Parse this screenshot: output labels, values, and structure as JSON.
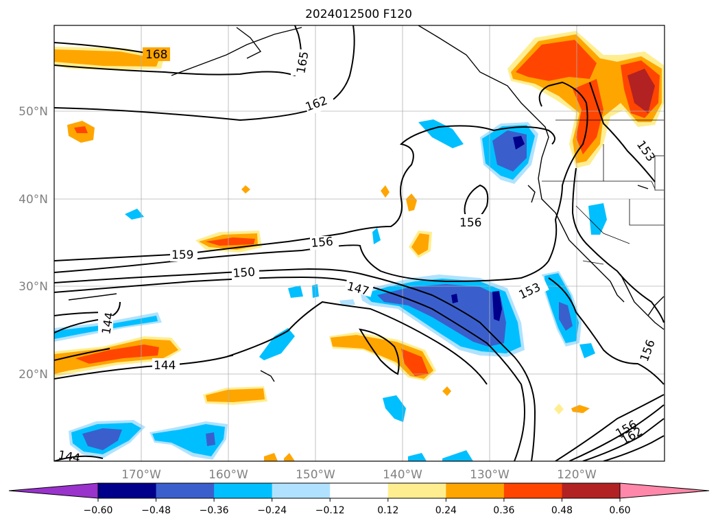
{
  "title": "2024012500 F120",
  "map": {
    "lat_labels": [
      "50°N",
      "40°N",
      "30°N",
      "20°N"
    ],
    "lon_labels": [
      "170°W",
      "160°W",
      "150°W",
      "140°W",
      "130°W",
      "120°W"
    ],
    "extent": {
      "lon_min": -180,
      "lon_max": -110,
      "lat_min": 10,
      "lat_max": 60
    },
    "grid": true
  },
  "contour_labels": [
    "168",
    "165",
    "162",
    "159",
    "156",
    "150",
    "147",
    "144",
    "144",
    "144",
    "153",
    "153",
    "156",
    "156",
    "156",
    "162"
  ],
  "colorbar": {
    "ticks": [
      "−0.60",
      "−0.48",
      "−0.36",
      "−0.24",
      "−0.12",
      "0.12",
      "0.24",
      "0.36",
      "0.48",
      "0.60"
    ],
    "colors": [
      "#9933cc",
      "#00008b",
      "#3a5fcd",
      "#00bfff",
      "#b0e2ff",
      "#ffffff",
      "#ffee90",
      "#ffa500",
      "#ff4500",
      "#b22222",
      "#ff88aa"
    ]
  }
}
